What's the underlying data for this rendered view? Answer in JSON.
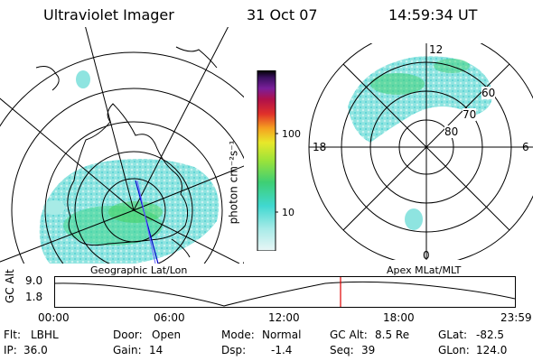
{
  "header": {
    "title": "Ultraviolet Imager",
    "date": "31 Oct 07",
    "time": "14:59:34 UT"
  },
  "colorbar": {
    "unit_label": "photon cm⁻²s⁻¹",
    "ticks": [
      "100",
      "10"
    ]
  },
  "right_map": {
    "clock_labels": {
      "top": "12",
      "left": "18",
      "right": "6",
      "bottom": "0"
    },
    "lat_labels": [
      "60",
      "70",
      "80"
    ]
  },
  "timeline": {
    "left_caption": "Geographic Lat/Lon",
    "right_caption": "Apex MLat/MLT",
    "axis_label": "GC Alt",
    "y_top": "9.0",
    "y_bottom": "1.8",
    "x_ticks": [
      "00:00",
      "06:00",
      "12:00",
      "18:00",
      "23:59"
    ],
    "current_marker_color": "#e00000"
  },
  "status": {
    "row1": [
      {
        "label": "Flt:",
        "value": "LBHL"
      },
      {
        "label": "Door:",
        "value": "Open"
      },
      {
        "label": "Mode:",
        "value": "Normal"
      },
      {
        "label": "GC Alt:",
        "value": "8.5 Re"
      },
      {
        "label": "GLat:",
        "value": "-82.5"
      }
    ],
    "row2": [
      {
        "label": "IP:",
        "value": "36.0"
      },
      {
        "label": "Gain:",
        "value": "14"
      },
      {
        "label": "Dsp:",
        "value": "-1.4"
      },
      {
        "label": "Seq:",
        "value": "39"
      },
      {
        "label": "GLon:",
        "value": "124.0"
      }
    ]
  }
}
